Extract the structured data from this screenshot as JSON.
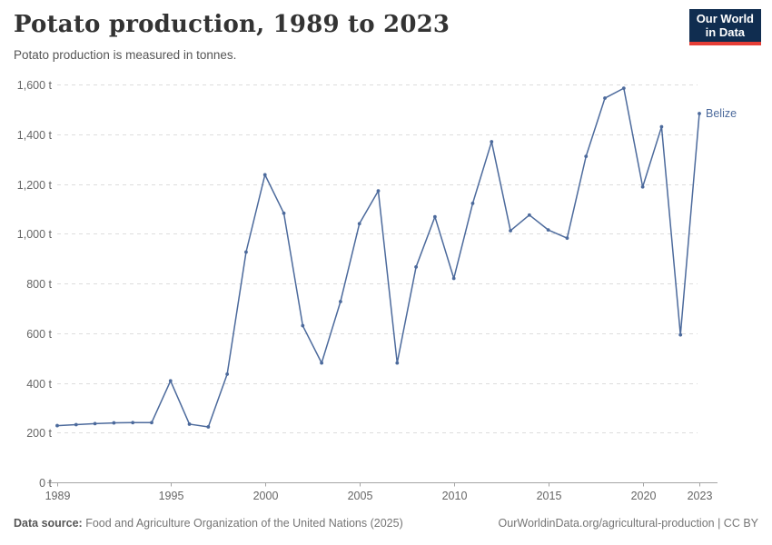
{
  "header": {
    "title": "Potato production, 1989 to 2023",
    "subtitle": "Potato production is measured in tonnes.",
    "logo_line1": "Our World",
    "logo_line2": "in Data",
    "logo_colors": {
      "background": "#102d50",
      "accent": "#e63e36"
    }
  },
  "chart_data": {
    "type": "line",
    "title": "Potato production, 1989 to 2023",
    "subtitle": "Potato production is measured in tonnes.",
    "unit": "tonnes",
    "x": [
      1989,
      1990,
      1991,
      1992,
      1993,
      1994,
      1995,
      1996,
      1997,
      1998,
      1999,
      2000,
      2001,
      2002,
      2003,
      2004,
      2005,
      2006,
      2007,
      2008,
      2009,
      2010,
      2011,
      2012,
      2013,
      2014,
      2015,
      2016,
      2017,
      2018,
      2019,
      2020,
      2021,
      2022,
      2023
    ],
    "series": [
      {
        "name": "Belize",
        "color": "#4c6a9c",
        "values": [
          228,
          232,
          236,
          239,
          240,
          240,
          408,
          234,
          223,
          435,
          926,
          1237,
          1082,
          630,
          480,
          727,
          1040,
          1172,
          480,
          866,
          1068,
          820,
          1122,
          1370,
          1012,
          1075,
          1015,
          982,
          1311,
          1545,
          1585,
          1188,
          1430,
          593,
          1483
        ]
      }
    ],
    "xlim": [
      1989,
      2023
    ],
    "ylim": [
      0,
      1600
    ],
    "x_ticks": [
      1989,
      1995,
      2000,
      2005,
      2010,
      2015,
      2020,
      2023
    ],
    "x_tick_labels": [
      "1989",
      "1995",
      "2000",
      "2005",
      "2010",
      "2015",
      "2020",
      "2023"
    ],
    "y_ticks": [
      0,
      200,
      400,
      600,
      800,
      1000,
      1200,
      1400,
      1600
    ],
    "y_tick_labels": [
      "0 t",
      "200 t",
      "400 t",
      "600 t",
      "800 t",
      "1,000 t",
      "1,200 t",
      "1,400 t",
      "1,600 t"
    ],
    "grid": "horizontal-dashed",
    "legend_position": "line-end-label",
    "colors": {
      "grid": "#dddddd",
      "axis": "#a5a5a5",
      "tick_text": "#666666"
    }
  },
  "footer": {
    "datasource_label": "Data source:",
    "datasource_text": "Food and Agriculture Organization of the United Nations (2025)",
    "credit": "OurWorldinData.org/agricultural-production | CC BY"
  }
}
